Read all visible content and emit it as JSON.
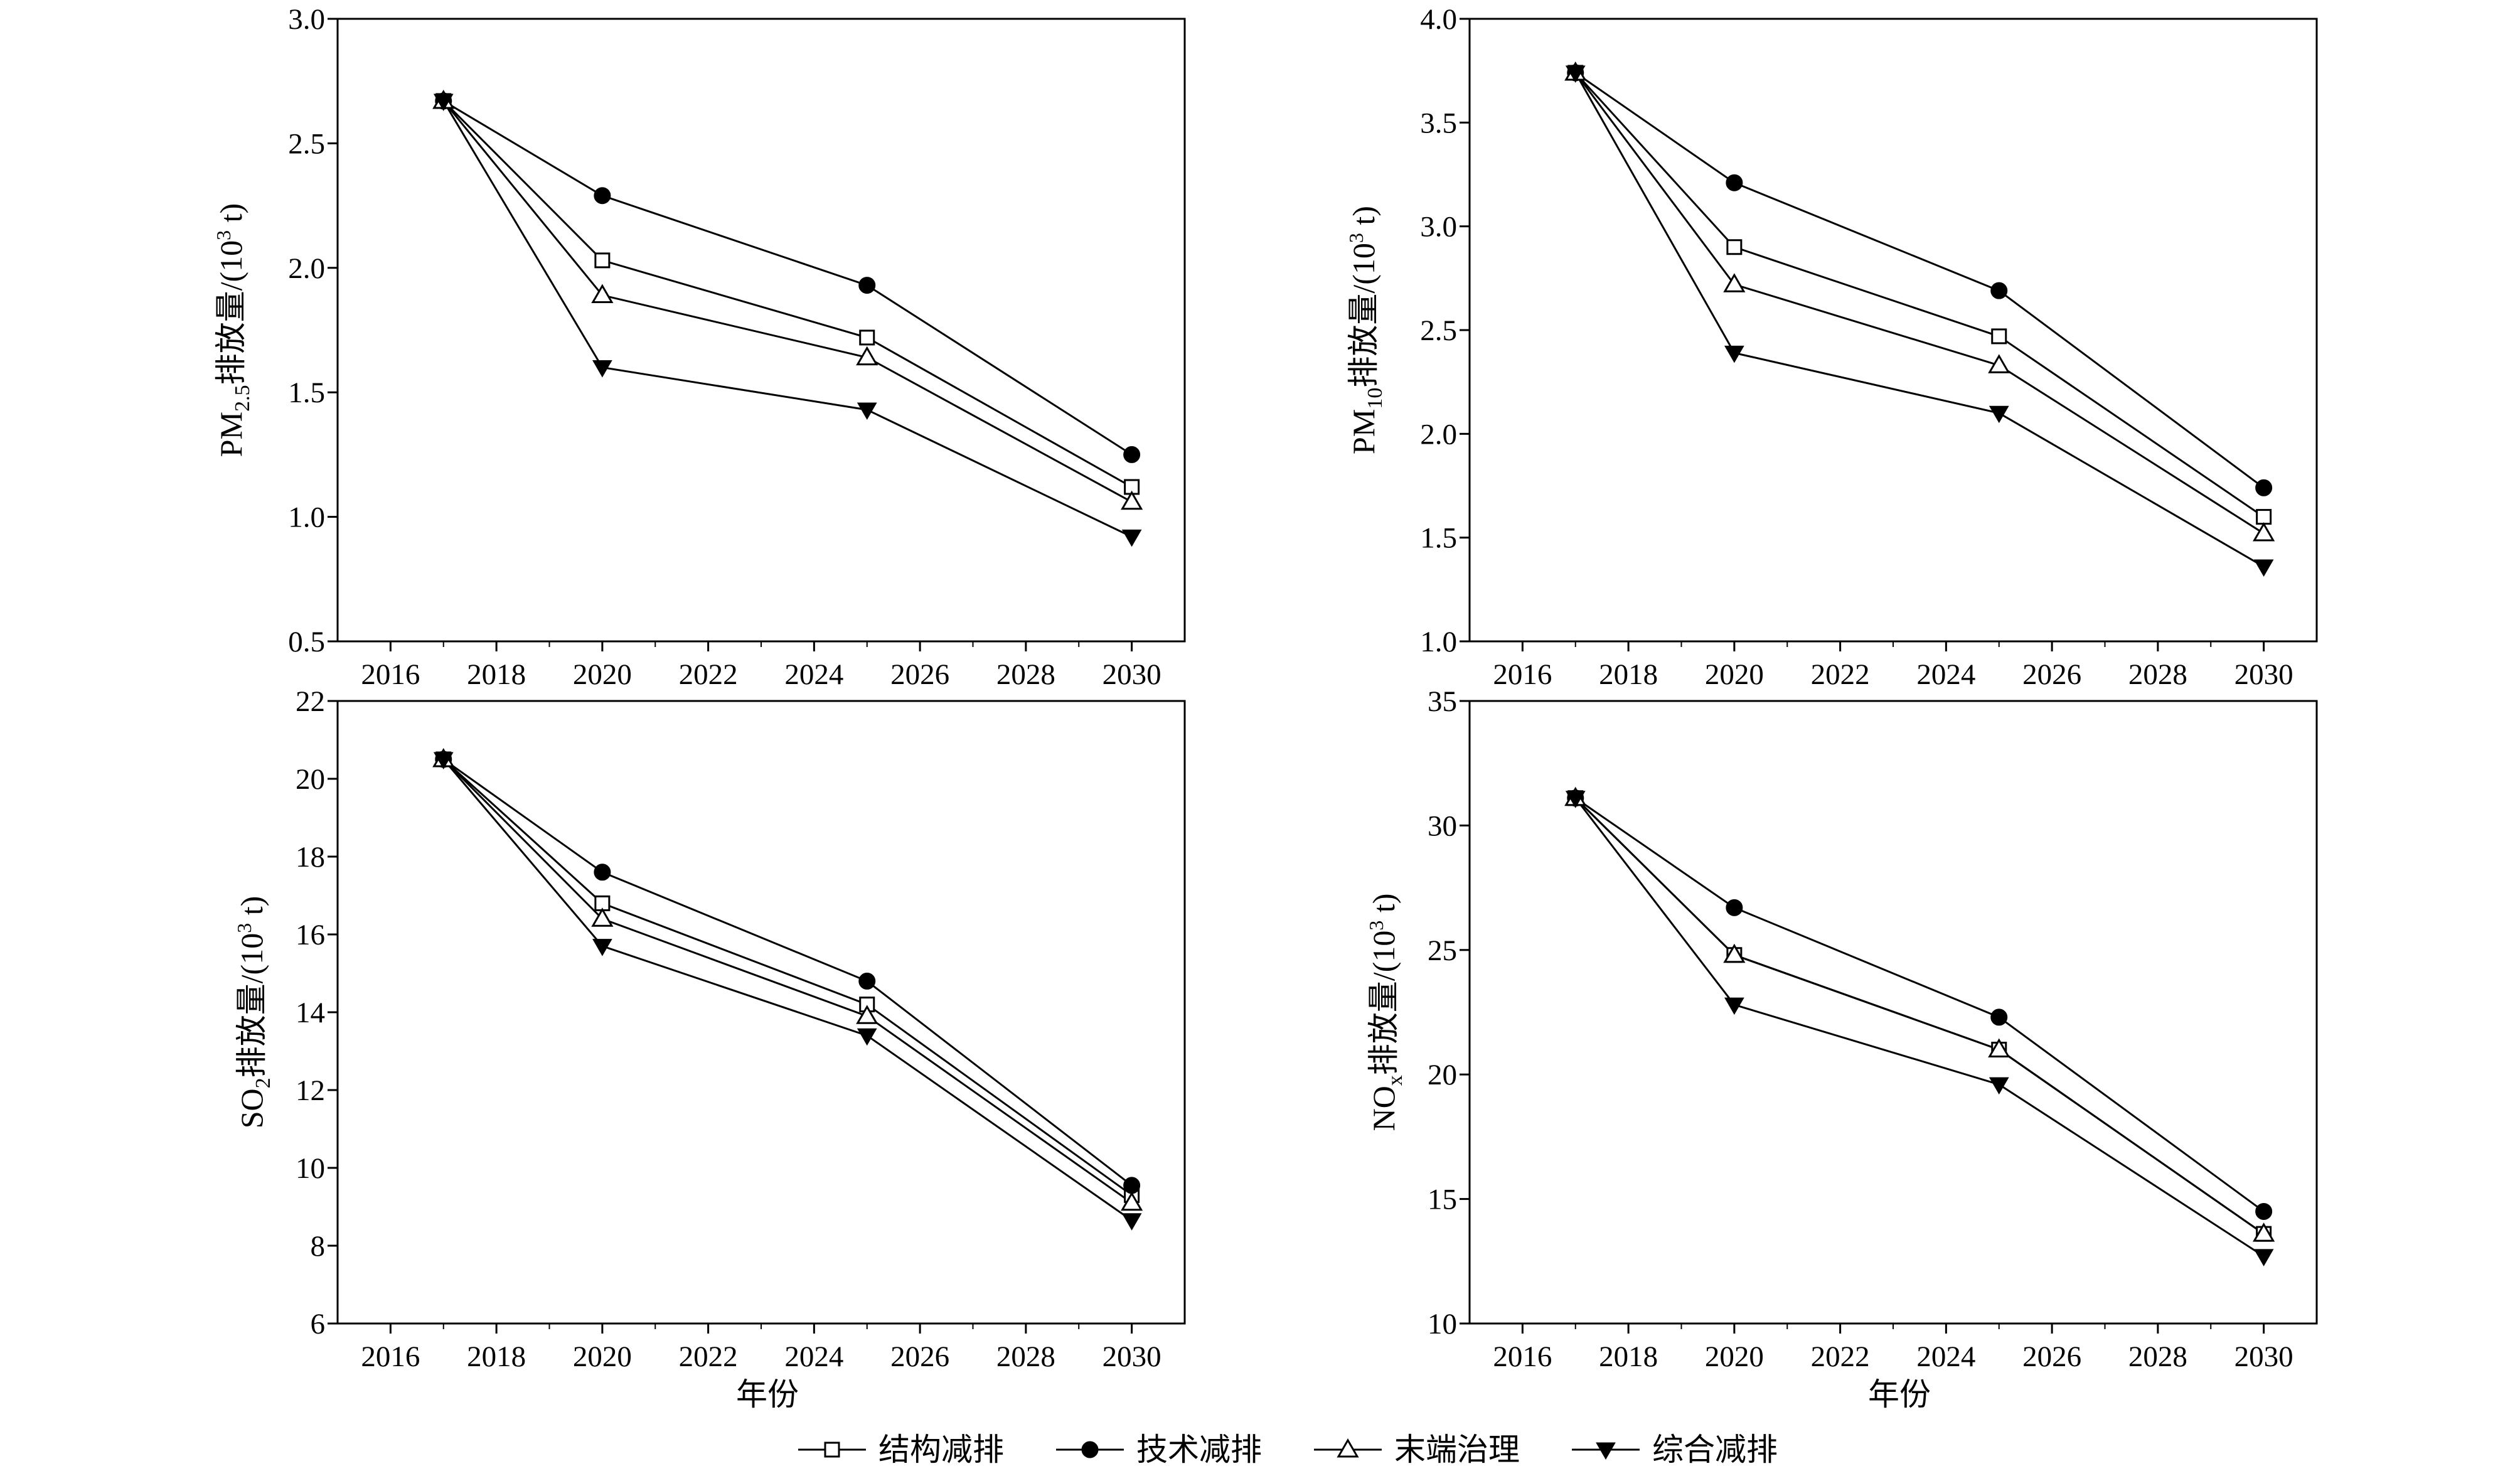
{
  "chart_data": [
    {
      "type": "line",
      "ylabel": "PM2.5排放量/(10³ t)",
      "ylabel_parts": {
        "base": "PM",
        "sub": "2.5",
        "suffix": "排放量/(10",
        "sup": "3",
        "end": " t)"
      },
      "xlabel": "",
      "xlim": [
        2015,
        2031
      ],
      "ylim": [
        0.5,
        3.0
      ],
      "xticks": [
        "2016",
        "2018",
        "2020",
        "2022",
        "2024",
        "2026",
        "2028",
        "2030"
      ],
      "yticks": [
        "0.5",
        "1.0",
        "1.5",
        "2.0",
        "2.5",
        "3.0"
      ],
      "x": [
        2017,
        2020,
        2025,
        2030
      ],
      "series": [
        {
          "name": "结构减排",
          "values": [
            2.67,
            2.03,
            1.72,
            1.12
          ]
        },
        {
          "name": "技术减排",
          "values": [
            2.67,
            2.29,
            1.93,
            1.25
          ]
        },
        {
          "name": "末端治理",
          "values": [
            2.67,
            1.89,
            1.64,
            1.06
          ]
        },
        {
          "name": "综合减排",
          "values": [
            2.67,
            1.6,
            1.43,
            0.92
          ]
        }
      ]
    },
    {
      "type": "line",
      "ylabel": "PM10排放量/(10³ t)",
      "ylabel_parts": {
        "base": "PM",
        "sub": "10",
        "suffix": "排放量/(10",
        "sup": "3",
        "end": " t)"
      },
      "xlabel": "",
      "xlim": [
        2015,
        2031
      ],
      "ylim": [
        1.0,
        4.0
      ],
      "xticks": [
        "2016",
        "2018",
        "2020",
        "2022",
        "2024",
        "2026",
        "2028",
        "2030"
      ],
      "yticks": [
        "1.0",
        "1.5",
        "2.0",
        "2.5",
        "3.0",
        "3.5",
        "4.0"
      ],
      "x": [
        2017,
        2020,
        2025,
        2030
      ],
      "series": [
        {
          "name": "结构减排",
          "values": [
            3.74,
            2.9,
            2.47,
            1.6
          ]
        },
        {
          "name": "技术减排",
          "values": [
            3.74,
            3.21,
            2.69,
            1.74
          ]
        },
        {
          "name": "末端治理",
          "values": [
            3.74,
            2.72,
            2.33,
            1.52
          ]
        },
        {
          "name": "综合减排",
          "values": [
            3.74,
            2.39,
            2.1,
            1.36
          ]
        }
      ]
    },
    {
      "type": "line",
      "ylabel": "SO2排放量/(10³ t)",
      "ylabel_parts": {
        "base": "SO",
        "sub": "2",
        "suffix": "排放量/(10",
        "sup": "3",
        "end": " t)"
      },
      "xlabel": "年份",
      "xlim": [
        2015,
        2031
      ],
      "ylim": [
        6,
        22
      ],
      "xticks": [
        "2016",
        "2018",
        "2020",
        "2022",
        "2024",
        "2026",
        "2028",
        "2030"
      ],
      "yticks": [
        "6",
        "8",
        "10",
        "12",
        "14",
        "16",
        "18",
        "20",
        "22"
      ],
      "x": [
        2017,
        2020,
        2025,
        2030
      ],
      "series": [
        {
          "name": "结构减排",
          "values": [
            20.5,
            16.8,
            14.2,
            9.3
          ]
        },
        {
          "name": "技术减排",
          "values": [
            20.5,
            17.6,
            14.8,
            9.55
          ]
        },
        {
          "name": "末端治理",
          "values": [
            20.5,
            16.4,
            13.9,
            9.1
          ]
        },
        {
          "name": "综合减排",
          "values": [
            20.5,
            15.7,
            13.4,
            8.65
          ]
        }
      ]
    },
    {
      "type": "line",
      "ylabel": "NOx排放量/(10³ t)",
      "ylabel_parts": {
        "base": "NO",
        "sub": "x",
        "suffix": "排放量/(10",
        "sup": "3",
        "end": " t)"
      },
      "xlabel": "年份",
      "xlim": [
        2015,
        2031
      ],
      "ylim": [
        10,
        35
      ],
      "xticks": [
        "2016",
        "2018",
        "2020",
        "2022",
        "2024",
        "2026",
        "2028",
        "2030"
      ],
      "yticks": [
        "10",
        "15",
        "20",
        "25",
        "30",
        "35"
      ],
      "x": [
        2017,
        2020,
        2025,
        2030
      ],
      "series": [
        {
          "name": "结构减排",
          "values": [
            31.1,
            24.8,
            21.0,
            13.6
          ]
        },
        {
          "name": "技术减排",
          "values": [
            31.1,
            26.7,
            22.3,
            14.5
          ]
        },
        {
          "name": "末端治理",
          "values": [
            31.1,
            24.8,
            21.0,
            13.6
          ]
        },
        {
          "name": "综合减排",
          "values": [
            31.1,
            22.8,
            19.6,
            12.7
          ]
        }
      ]
    }
  ],
  "legend": [
    {
      "label": "结构减排",
      "marker": "square-open"
    },
    {
      "label": "技术减排",
      "marker": "circle-filled"
    },
    {
      "label": "末端治理",
      "marker": "triangle-open"
    },
    {
      "label": "综合减排",
      "marker": "triangle-down-filled"
    }
  ],
  "markers": [
    "square-open",
    "circle-filled",
    "triangle-open",
    "triangle-down-filled"
  ]
}
